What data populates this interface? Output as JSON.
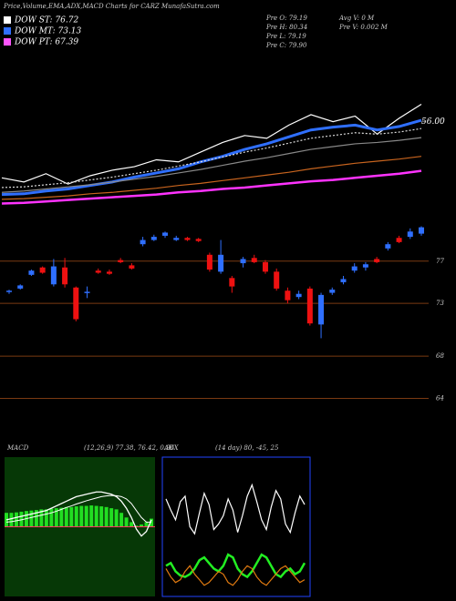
{
  "chart_data": [
    {
      "type": "line",
      "title": "Price,Volume,EMA,ADX,MACD Charts for CARZ MunafaSutra.com",
      "legend": [
        "DOW ST: 76.72",
        "DOW MT: 73.13",
        "DOW PT: 67.39"
      ],
      "legend_colors": [
        "#ffffff",
        "#2f6fff",
        "#ff55ff"
      ],
      "info": [
        "Pre O: 79.19",
        "Pre H: 80.34",
        "Pre L: 79.19",
        "Pre C: 79.90",
        "Avg V: 0 M",
        "Pre V: 0.002 M"
      ],
      "ylim": [
        44,
        65
      ],
      "yticks": [
        {
          "value": 56,
          "label": "56.00"
        }
      ],
      "series": [
        {
          "color": "#ffffff",
          "values": [
            47.9,
            47.3,
            48.5,
            47.0,
            48.2,
            49.0,
            49.5,
            50.5,
            50.2,
            51.6,
            53.0,
            54.0,
            53.6,
            55.5,
            57.0,
            56.0,
            56.8,
            54.2,
            56.5,
            58.5
          ]
        },
        {
          "color": "#2f6fff",
          "values": [
            45.5,
            45.6,
            46.0,
            46.3,
            46.8,
            47.3,
            48.0,
            48.6,
            49.2,
            50.2,
            51.0,
            52.0,
            52.8,
            53.8,
            54.8,
            55.2,
            55.5,
            54.8,
            55.3,
            56.2
          ]
        },
        {
          "color": "#dddddd",
          "values": [
            46.5,
            46.6,
            46.9,
            47.2,
            47.6,
            48.0,
            48.5,
            49.0,
            49.6,
            50.2,
            50.9,
            51.6,
            52.2,
            52.9,
            53.6,
            54.0,
            54.4,
            54.2,
            54.5,
            55.0
          ]
        },
        {
          "color": "#888888",
          "values": [
            45.8,
            46.0,
            46.3,
            46.6,
            46.9,
            47.3,
            47.7,
            48.1,
            48.6,
            49.1,
            49.7,
            50.3,
            50.8,
            51.4,
            52.0,
            52.4,
            52.8,
            53.0,
            53.3,
            53.7
          ]
        },
        {
          "color": "#c8641e",
          "values": [
            44.8,
            44.9,
            45.1,
            45.3,
            45.6,
            45.8,
            46.1,
            46.4,
            46.8,
            47.1,
            47.5,
            47.9,
            48.3,
            48.7,
            49.2,
            49.6,
            50.0,
            50.3,
            50.6,
            51.0
          ]
        },
        {
          "color": "#ff33ff",
          "values": [
            44.2,
            44.3,
            44.5,
            44.7,
            44.9,
            45.1,
            45.3,
            45.5,
            45.8,
            46.0,
            46.3,
            46.5,
            46.8,
            47.1,
            47.4,
            47.6,
            47.9,
            48.2,
            48.5,
            48.9
          ]
        }
      ]
    },
    {
      "type": "candlestick",
      "ylim": [
        61.2,
        80.6
      ],
      "yticks": [
        77,
        73,
        68,
        64
      ],
      "grid": true,
      "up_color": "#2f6fff",
      "down_color": "#ee1111",
      "grid_color": "#7a3a12",
      "open": [
        74.1,
        74.4,
        75.7,
        76.4,
        74.8,
        76.4,
        74.5,
        74.0,
        76.1,
        76.0,
        77.1,
        76.6,
        78.6,
        79.0,
        79.4,
        79.0,
        79.2,
        79.1,
        77.6,
        76.0,
        75.4,
        76.8,
        77.3,
        76.9,
        76.0,
        74.2,
        73.6,
        74.4,
        71.0,
        74.0,
        75.0,
        76.1,
        76.4,
        77.2,
        78.2,
        79.2,
        79.3,
        79.6
      ],
      "high": [
        74.3,
        74.8,
        76.2,
        76.5,
        77.2,
        77.3,
        74.6,
        74.6,
        76.3,
        76.2,
        77.3,
        76.8,
        79.3,
        79.5,
        79.8,
        79.4,
        79.3,
        79.2,
        77.8,
        79.0,
        75.6,
        77.4,
        77.6,
        77.1,
        76.3,
        74.5,
        74.2,
        74.6,
        74.0,
        74.5,
        75.6,
        76.8,
        76.9,
        77.4,
        78.8,
        79.4,
        80.1,
        80.3
      ],
      "low": [
        73.9,
        74.3,
        75.6,
        75.8,
        74.6,
        74.5,
        71.3,
        73.5,
        75.8,
        75.7,
        76.8,
        76.2,
        78.4,
        78.9,
        79.2,
        78.9,
        78.9,
        78.8,
        76.0,
        75.8,
        74.0,
        76.4,
        76.8,
        75.8,
        74.2,
        73.0,
        73.4,
        70.9,
        69.7,
        73.8,
        74.8,
        75.9,
        76.1,
        76.8,
        78.0,
        78.7,
        79.1,
        79.4
      ],
      "close": [
        74.2,
        74.7,
        76.1,
        75.9,
        76.5,
        74.8,
        71.5,
        74.1,
        75.9,
        75.8,
        76.9,
        76.3,
        79.0,
        79.3,
        79.7,
        79.2,
        79.0,
        78.9,
        76.2,
        77.6,
        74.6,
        77.2,
        76.9,
        76.0,
        74.4,
        73.3,
        73.9,
        71.1,
        73.8,
        74.3,
        75.3,
        76.5,
        76.7,
        76.9,
        78.6,
        78.8,
        79.8,
        80.2
      ]
    },
    {
      "type": "macd",
      "title": "MACD",
      "params": "(12,26,9) 77.38, 76.42, 0.96",
      "ylim": [
        -3,
        3
      ],
      "background": "#063806",
      "zero_color": "#ff3366",
      "hist_color": "#22dd22",
      "macd": [
        0.3,
        0.35,
        0.4,
        0.45,
        0.5,
        0.55,
        0.6,
        0.65,
        0.7,
        0.8,
        0.9,
        1.0,
        1.1,
        1.2,
        1.3,
        1.35,
        1.4,
        1.45,
        1.5,
        1.5,
        1.45,
        1.4,
        1.3,
        1.1,
        0.8,
        0.4,
        -0.1,
        -0.4,
        -0.2,
        0.3
      ],
      "signal": [
        0.2,
        0.22,
        0.26,
        0.3,
        0.35,
        0.4,
        0.45,
        0.5,
        0.55,
        0.6,
        0.67,
        0.75,
        0.83,
        0.9,
        0.98,
        1.05,
        1.12,
        1.18,
        1.24,
        1.3,
        1.33,
        1.35,
        1.34,
        1.3,
        1.2,
        1.0,
        0.7,
        0.4,
        0.2,
        0.2
      ],
      "hist": [
        0.6,
        0.6,
        0.62,
        0.65,
        0.68,
        0.7,
        0.72,
        0.75,
        0.75,
        0.78,
        0.8,
        0.82,
        0.85,
        0.85,
        0.88,
        0.9,
        0.9,
        0.92,
        0.9,
        0.88,
        0.85,
        0.8,
        0.75,
        0.6,
        0.4,
        0.2,
        0.05,
        0.1,
        0.2,
        0.35
      ]
    },
    {
      "type": "adx",
      "title": "ADX",
      "params": "(14 day) 80, -45, 25",
      "ylim": [
        0,
        100
      ],
      "border": "#2244ff",
      "series": [
        {
          "color": "#ffffff",
          "values": [
            70,
            62,
            55,
            68,
            72,
            50,
            45,
            60,
            74,
            66,
            48,
            52,
            58,
            70,
            62,
            46,
            58,
            72,
            80,
            68,
            55,
            48,
            64,
            76,
            70,
            52,
            46,
            60,
            72,
            66
          ]
        },
        {
          "color": "#22ee22",
          "values": [
            22,
            24,
            18,
            15,
            14,
            16,
            20,
            26,
            28,
            24,
            20,
            18,
            22,
            30,
            28,
            20,
            16,
            14,
            18,
            24,
            30,
            28,
            22,
            16,
            14,
            18,
            20,
            16,
            18,
            24
          ]
        },
        {
          "color": "#e07a10",
          "values": [
            20,
            14,
            10,
            12,
            18,
            22,
            16,
            12,
            8,
            10,
            14,
            18,
            16,
            10,
            8,
            12,
            18,
            22,
            20,
            14,
            10,
            8,
            12,
            16,
            20,
            22,
            18,
            14,
            10,
            12
          ]
        }
      ]
    }
  ]
}
